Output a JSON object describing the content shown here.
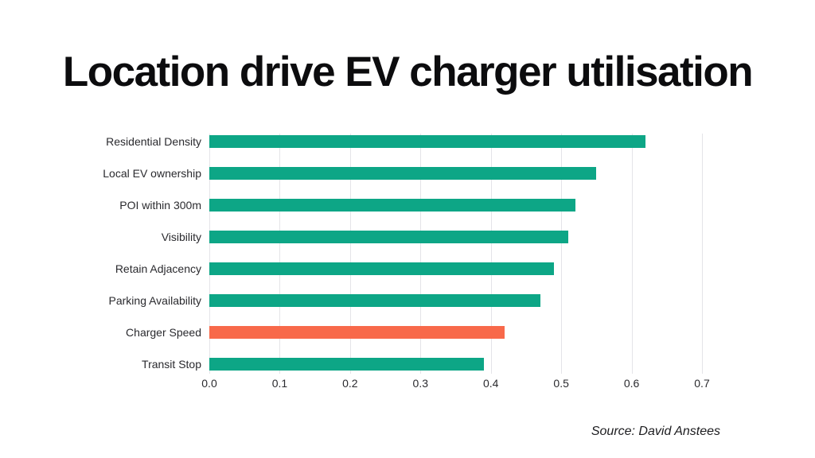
{
  "title": "Location drive EV charger utilisation",
  "source": "Source: David Anstees",
  "colors": {
    "background": "#ffffff",
    "bar_default": "#0da686",
    "bar_highlight": "#f8694a",
    "gridline": "#e4e4e8",
    "title_text": "#0c0c0e",
    "label_text": "#2a2a2e"
  },
  "chart_data": {
    "type": "bar",
    "orientation": "horizontal",
    "title": "Location drive EV charger utilisation",
    "xlabel": "",
    "ylabel": "",
    "categories": [
      "Residential Density",
      "Local EV ownership",
      "POI within 300m",
      "Visibility",
      "Retain Adjacency",
      "Parking Availability",
      "Charger Speed",
      "Transit Stop"
    ],
    "values": [
      0.62,
      0.55,
      0.52,
      0.51,
      0.49,
      0.47,
      0.42,
      0.39
    ],
    "bar_colors": [
      "#0da686",
      "#0da686",
      "#0da686",
      "#0da686",
      "#0da686",
      "#0da686",
      "#f8694a",
      "#0da686"
    ],
    "highlighted_category": "Charger Speed",
    "xlim": [
      0.0,
      0.7
    ],
    "x_ticks": [
      "0.0",
      "0.1",
      "0.2",
      "0.3",
      "0.4",
      "0.5",
      "0.6",
      "0.7"
    ],
    "grid": true,
    "legend": false,
    "annotation": "Source: David Anstees"
  }
}
